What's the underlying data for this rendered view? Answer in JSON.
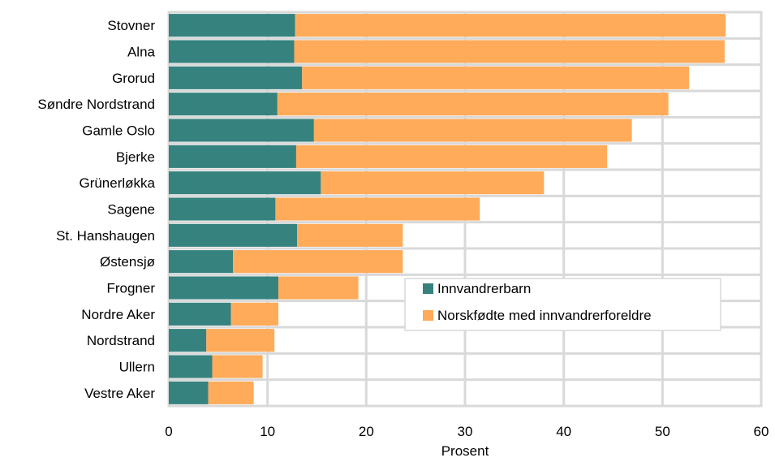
{
  "chart_data": {
    "type": "bar",
    "orientation": "horizontal",
    "stacked": true,
    "categories": [
      "Stovner",
      "Alna",
      "Grorud",
      "Søndre Nordstrand",
      "Gamle Oslo",
      "Bjerke",
      "Grünerløkka",
      "Sagene",
      "St. Hanshaugen",
      "Østensjø",
      "Frogner",
      "Nordre Aker",
      "Nordstrand",
      "Ullern",
      "Vestre Aker"
    ],
    "series": [
      {
        "name": "Innvandrerbarn",
        "color": "#36827f",
        "values": [
          12.8,
          12.7,
          13.5,
          11.0,
          14.7,
          12.9,
          15.4,
          10.8,
          13.0,
          6.5,
          11.1,
          6.3,
          3.8,
          4.4,
          4.0
        ]
      },
      {
        "name": "Norskfødte med innvandrerforeldre",
        "color": "#ffab5a",
        "values": [
          43.6,
          43.6,
          39.2,
          39.6,
          32.2,
          31.5,
          22.6,
          20.7,
          10.7,
          17.2,
          8.1,
          4.8,
          6.9,
          5.1,
          4.6
        ]
      }
    ],
    "xlabel": "Prosent",
    "xlim": [
      0,
      60
    ],
    "xticks": [
      "0",
      "10",
      "20",
      "30",
      "40",
      "50",
      "60"
    ],
    "grid": true,
    "legend_position": "center-right"
  }
}
